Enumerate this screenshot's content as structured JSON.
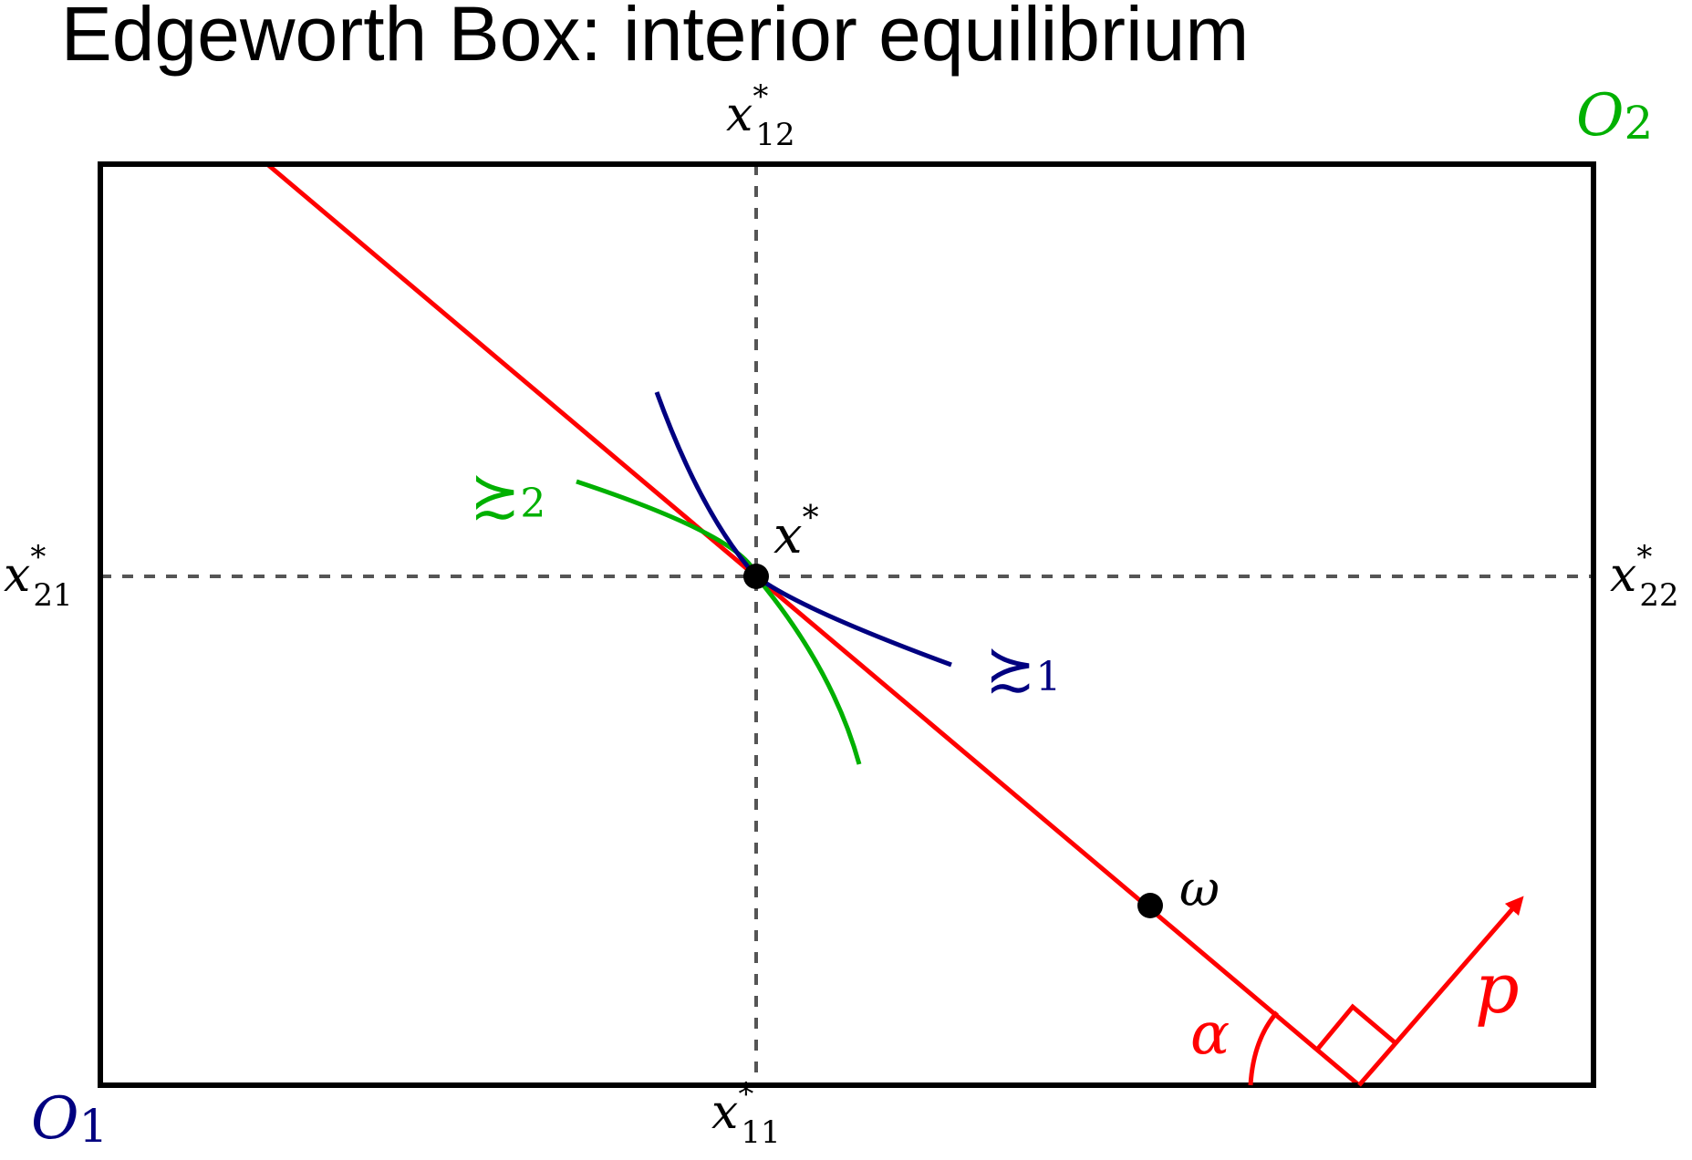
{
  "title": "Edgeworth Box: interior equilibrium",
  "colors": {
    "box": "#000000",
    "budget_line": "#ff0000",
    "agent1": "#000080",
    "agent2": "#00b000",
    "guide": "#555555",
    "point": "#000000"
  },
  "origins": {
    "o1": {
      "main": "O",
      "sub": "1"
    },
    "o2": {
      "main": "O",
      "sub": "2"
    }
  },
  "axis_labels": {
    "x11": {
      "main": "x",
      "sup": "*",
      "sub": "11"
    },
    "x12": {
      "main": "x",
      "sup": "*",
      "sub": "12"
    },
    "x21": {
      "main": "x",
      "sup": "*",
      "sub": "21"
    },
    "x22": {
      "main": "x",
      "sup": "*",
      "sub": "22"
    }
  },
  "points": {
    "equilibrium": {
      "main": "x",
      "sup": "*"
    },
    "endowment": {
      "main": "ω"
    }
  },
  "preferences": {
    "agent1": {
      "symbol": "≿",
      "sub": "1"
    },
    "agent2": {
      "symbol": "≿",
      "sub": "2"
    }
  },
  "price": {
    "vector_label": "p",
    "angle_label": "α"
  }
}
